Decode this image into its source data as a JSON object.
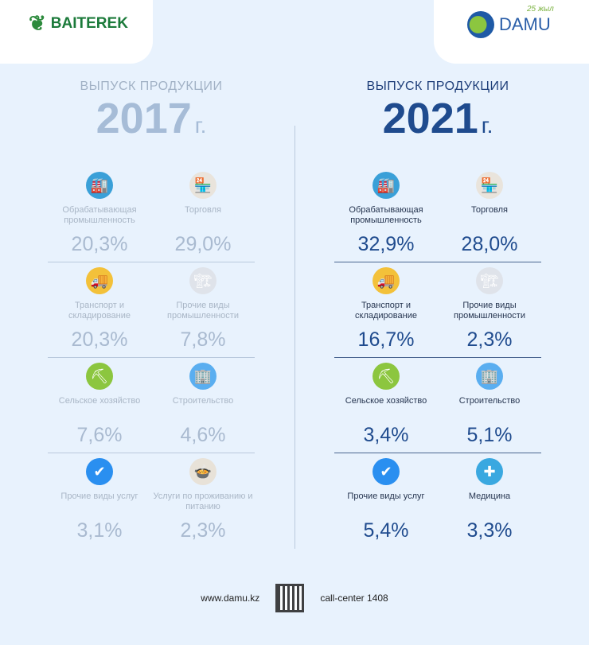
{
  "header": {
    "left_logo": "BAITEREK",
    "right_logo": "DAMU",
    "right_logo_badge": "25 жыл"
  },
  "left": {
    "subtitle": "ВЫПУСК ПРОДУКЦИИ",
    "year": "2017",
    "year_suffix": "г.",
    "rows": [
      [
        {
          "icon": "factory-icon",
          "label": "Обрабатывающая промышленность",
          "value": "20,3%"
        },
        {
          "icon": "shop-icon",
          "label": "Торговля",
          "value": "29,0%"
        }
      ],
      [
        {
          "icon": "truck-icon",
          "label": "Транспорт и складирование",
          "value": "20,3%"
        },
        {
          "icon": "industry-icon",
          "label": "Прочие виды промышленности",
          "value": "7,8%"
        }
      ],
      [
        {
          "icon": "shovel-icon",
          "label": "Сельское хозяйство",
          "value": "7,6%"
        },
        {
          "icon": "building-icon",
          "label": "Строительство",
          "value": "4,6%"
        }
      ],
      [
        {
          "icon": "check-badge-icon",
          "label": "Прочие виды услуг",
          "value": "3,1%"
        },
        {
          "icon": "food-icon",
          "label": "Услуги по проживанию и питанию",
          "value": "2,3%"
        }
      ]
    ]
  },
  "right": {
    "subtitle": "ВЫПУСК ПРОДУКЦИИ",
    "year": "2021",
    "year_suffix": "г.",
    "rows": [
      [
        {
          "icon": "factory-icon",
          "label": "Обрабатывающая промышленность",
          "value": "32,9%"
        },
        {
          "icon": "shop-icon",
          "label": "Торговля",
          "value": "28,0%"
        }
      ],
      [
        {
          "icon": "truck-icon",
          "label": "Транспорт и складирование",
          "value": "16,7%"
        },
        {
          "icon": "industry-icon",
          "label": "Прочие виды промышленности",
          "value": "2,3%"
        }
      ],
      [
        {
          "icon": "shovel-icon",
          "label": "Сельское хозяйство",
          "value": "3,4%"
        },
        {
          "icon": "building-icon",
          "label": "Строительство",
          "value": "5,1%"
        }
      ],
      [
        {
          "icon": "check-badge-icon",
          "label": "Прочие виды услуг",
          "value": "5,4%"
        },
        {
          "icon": "medicine-icon",
          "label": "Медицина",
          "value": "3,3%"
        }
      ]
    ]
  },
  "footer": {
    "website": "www.damu.kz",
    "call_center": "call-center 1408"
  }
}
